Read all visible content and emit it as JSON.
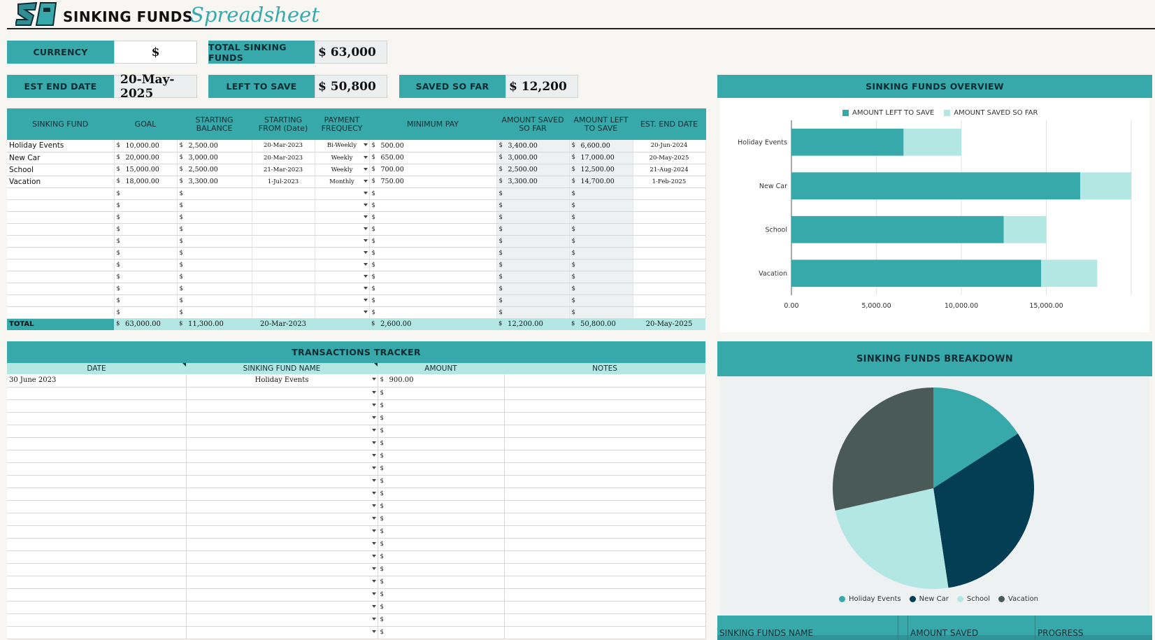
{
  "header": {
    "title_main": "SINKING FUNDS",
    "title_script": "Spreadsheet",
    "logo": "SI"
  },
  "summary": {
    "currency_label": "CURRENCY",
    "currency_value": "$",
    "total_label": "TOTAL SINKING FUNDS",
    "total_value": "$ 63,000",
    "end_label": "EST END DATE",
    "end_value": "20-May-2025",
    "left_label": "LEFT TO SAVE",
    "left_value": "$ 50,800",
    "saved_label": "SAVED SO FAR",
    "saved_value": "$ 12,200"
  },
  "funds_table": {
    "headers": [
      "SINKING FUND",
      "GOAL",
      "STARTING BALANCE",
      "STARTING FROM (Date)",
      "PAYMENT FREQUECY",
      "MINIMUM PAY",
      "AMOUNT SAVED SO FAR",
      "AMOUNT LEFT TO SAVE",
      "EST. END DATE"
    ],
    "rows": [
      {
        "name": "Holiday Events",
        "goal": "10,000.00",
        "start_bal": "2,500.00",
        "start_date": "20-Mar-2023",
        "freq": "Bi-Weekly",
        "min_pay": "500.00",
        "saved": "3,400.00",
        "left": "6,600.00",
        "end": "20-Jun-2024"
      },
      {
        "name": "New Car",
        "goal": "20,000.00",
        "start_bal": "3,000.00",
        "start_date": "20-Mar-2023",
        "freq": "Weekly",
        "min_pay": "650.00",
        "saved": "3,000.00",
        "left": "17,000.00",
        "end": "20-May-2025"
      },
      {
        "name": "School",
        "goal": "15,000.00",
        "start_bal": "2,500.00",
        "start_date": "21-Mar-2023",
        "freq": "Weekly",
        "min_pay": "700.00",
        "saved": "2,500.00",
        "left": "12,500.00",
        "end": "21-Aug-2024"
      },
      {
        "name": "Vacation",
        "goal": "18,000.00",
        "start_bal": "3,300.00",
        "start_date": "1-Jul-2023",
        "freq": "Monthly",
        "min_pay": "750.00",
        "saved": "3,300.00",
        "left": "14,700.00",
        "end": "1-Feb-2025"
      }
    ],
    "currency_symbol": "$",
    "total": {
      "label": "TOTAL",
      "goal": "63,000.00",
      "start_bal": "11,300.00",
      "start_date": "20-Mar-2023",
      "min_pay": "2,600.00",
      "saved": "12,200.00",
      "left": "50,800.00",
      "end": "20-May-2025"
    }
  },
  "transactions": {
    "title": "TRANSACTIONS TRACKER",
    "headers": [
      "DATE",
      "SINKING FUND NAME",
      "AMOUNT",
      "NOTES"
    ],
    "rows": [
      {
        "date": "30 June 2023",
        "fund": "Holiday Events",
        "amount": "900.00",
        "notes": ""
      }
    ]
  },
  "overview_chart": {
    "title": "SINKING FUNDS  OVERVIEW",
    "legend": [
      "AMOUNT LEFT TO SAVE",
      "AMOUNT SAVED SO FAR"
    ],
    "colors": [
      "#38a9ab",
      "#b2e7e3"
    ]
  },
  "breakdown_chart": {
    "title": "SINKING FUNDS BREAKDOWN",
    "colors": [
      "#38a9ab",
      "#033e55",
      "#b2e7e3",
      "#4a5a57"
    ]
  },
  "bottom_table": {
    "headers": [
      "SINKING FUNDS NAME",
      "AMOUNT SAVED",
      "PROGRESS"
    ]
  },
  "chart_data": [
    {
      "type": "bar",
      "orientation": "horizontal",
      "stacked": true,
      "categories": [
        "Holiday Events",
        "New Car",
        "School",
        "Vacation"
      ],
      "series": [
        {
          "name": "AMOUNT LEFT TO SAVE",
          "values": [
            6600,
            17000,
            12500,
            14700
          ]
        },
        {
          "name": "AMOUNT SAVED SO FAR",
          "values": [
            3400,
            3000,
            2500,
            3300
          ]
        }
      ],
      "xticks": [
        "0.00",
        "5,000.00",
        "10,000.00",
        "15,000.00"
      ],
      "xlim": [
        0,
        20000
      ],
      "legend": "top",
      "grid": true
    },
    {
      "type": "pie",
      "labels": [
        "Holiday Events",
        "New Car",
        "School",
        "Vacation"
      ],
      "values": [
        10000,
        20000,
        15000,
        18000
      ],
      "legend": "bottom"
    }
  ]
}
